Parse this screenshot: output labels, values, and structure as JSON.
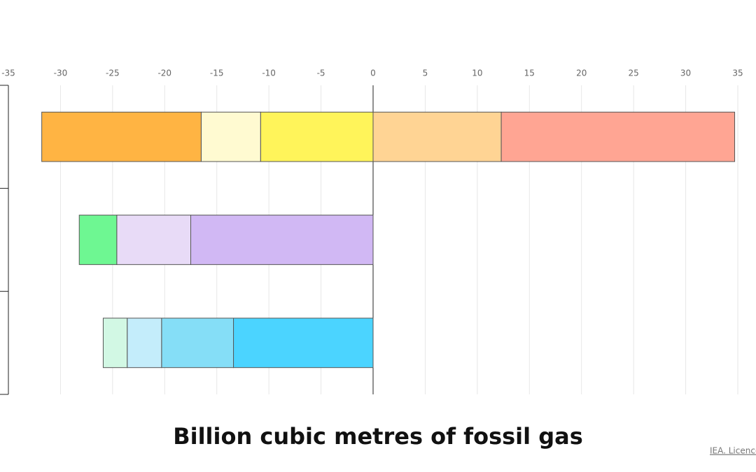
{
  "chart_data": {
    "type": "stacked-bar-horizontal",
    "x_label": "Billion cubic metres of fossil gas",
    "source": "IEA. Licence",
    "categories": [
      null,
      null,
      null
    ],
    "series": [
      {
        "color": "#fff45a",
        "values": [
          -10.8,
          null,
          null
        ]
      },
      {
        "color": "#fffad1",
        "values": [
          -5.7,
          null,
          null
        ]
      },
      {
        "color": "#ffb443",
        "values": [
          -15.3,
          null,
          null
        ]
      },
      {
        "color": "#ffd494",
        "values": [
          12.3,
          null,
          null
        ]
      },
      {
        "color": "#ffa593",
        "values": [
          22.4,
          null,
          null
        ]
      },
      {
        "color": "#d1b8f4",
        "values": [
          null,
          -17.5,
          null
        ]
      },
      {
        "color": "#e8dbf7",
        "values": [
          null,
          -7.1,
          null
        ]
      },
      {
        "color": "#6ef792",
        "values": [
          null,
          -3.6,
          null
        ]
      },
      {
        "color": "#4bd4ff",
        "values": [
          null,
          null,
          -13.4
        ]
      },
      {
        "color": "#85def7",
        "values": [
          null,
          null,
          -6.9
        ]
      },
      {
        "color": "#c4edfb",
        "values": [
          null,
          null,
          -3.3
        ]
      },
      {
        "color": "#d2f8e4",
        "values": [
          null,
          null,
          -2.3
        ]
      }
    ],
    "xlim": [
      -35,
      35
    ],
    "xticks": [
      -35,
      -30,
      -25,
      -20,
      -15,
      -10,
      -5,
      0,
      5,
      10,
      15,
      20,
      25,
      30,
      35
    ],
    "grid": true
  }
}
